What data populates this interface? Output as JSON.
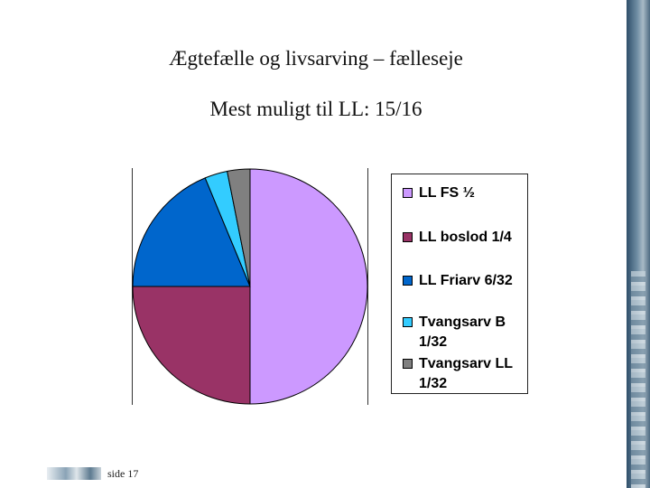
{
  "slide": {
    "title": "Ægtefælle og livsarving – fælleseje",
    "subtitle": "Mest muligt til LL: 15/16"
  },
  "footer": {
    "page": "side 17"
  },
  "chart_data": {
    "type": "pie",
    "legend_position": "right",
    "slices": [
      {
        "label": "LL FS ½",
        "value": 0.5,
        "color": "#CC99FF"
      },
      {
        "label": "LL boslod 1/4",
        "value": 0.25,
        "color": "#993366"
      },
      {
        "label": "LL Friarv 6/32",
        "value": 0.1875,
        "color": "#0066CC"
      },
      {
        "label": "Tvangsarv B 1/32",
        "value": 0.03125,
        "color": "#33CCFF"
      },
      {
        "label": "Tvangsarv LL 1/32",
        "value": 0.03125,
        "color": "#808080"
      }
    ]
  }
}
